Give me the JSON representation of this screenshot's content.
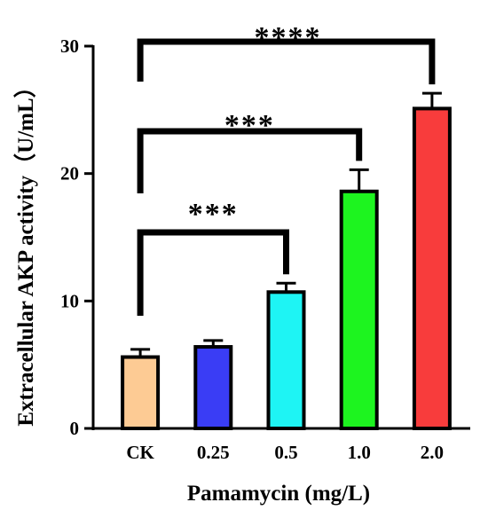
{
  "chart_data": {
    "type": "bar",
    "xlabel": "Pamamycin (mg/L)",
    "ylabel": "Extracellular AKP activity（U/mL）",
    "categories": [
      "CK",
      "0.25",
      "0.5",
      "1.0",
      "2.0"
    ],
    "values": [
      5.6,
      6.4,
      10.7,
      18.6,
      25.1
    ],
    "errors": [
      0.6,
      0.5,
      0.7,
      1.7,
      1.2
    ],
    "colors": [
      "#FDCB94",
      "#3A3DF5",
      "#1EF4F4",
      "#1DF41F",
      "#F83C3C"
    ],
    "ylim": [
      0,
      30
    ],
    "yticks": [
      "0",
      "10",
      "20",
      "30"
    ],
    "grid": false,
    "significance": [
      {
        "from": "CK",
        "to": "0.5",
        "label": "***"
      },
      {
        "from": "CK",
        "to": "1.0",
        "label": "***"
      },
      {
        "from": "CK",
        "to": "2.0",
        "label": "****"
      }
    ]
  }
}
